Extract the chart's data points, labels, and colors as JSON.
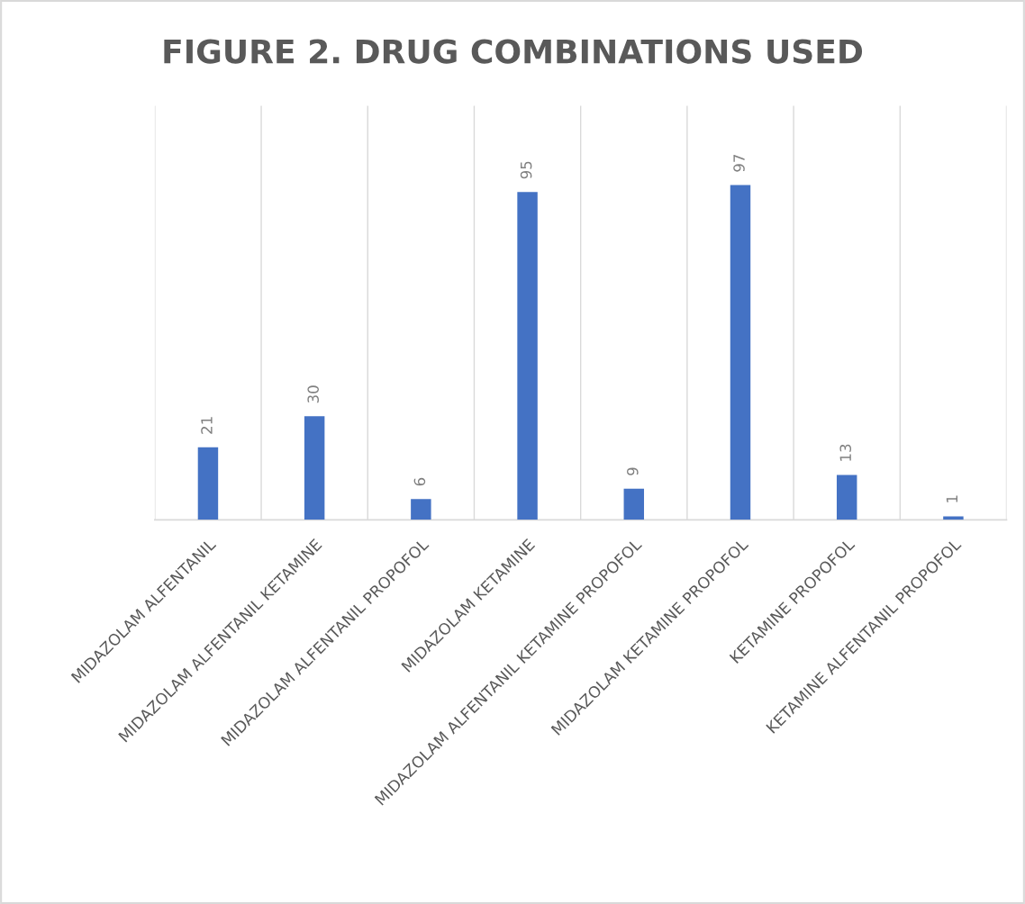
{
  "chart_data": {
    "type": "bar",
    "title": "FIGURE 2. DRUG COMBINATIONS USED",
    "categories": [
      "MIDAZOLAM ALFENTANIL",
      "MIDAZOLAM ALFENTANIL KETAMINE",
      "MIDAZOLAM ALFENTANIL PROPOFOL",
      "MIDAZOLAM KETAMINE",
      "MIDAZOLAM ALFENTANIL KETAMINE PROPOFOL",
      "MIDAZOLAM KETAMINE PROPOFOL",
      "KETAMINE PROPOFOL",
      "KETAMINE ALFENTANIL PROPOFOL"
    ],
    "values": [
      21,
      30,
      6,
      95,
      9,
      97,
      13,
      1
    ],
    "color": "#4472c4",
    "ylim": [
      0,
      120
    ],
    "grid": "x",
    "data_labels": true,
    "tick_labels": "x"
  }
}
